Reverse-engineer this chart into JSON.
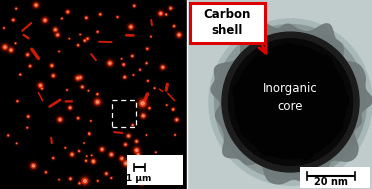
{
  "fig_width": 3.72,
  "fig_height": 1.89,
  "dpi": 100,
  "left_panel": {
    "bg_color": "#000000",
    "dot_color_bright": "#ff3300",
    "dot_color_dim": "#cc1100",
    "scale_bar_label": "1 μm",
    "n_dots": 110,
    "seed": 7
  },
  "right_panel": {
    "bg_color": "#c8d4d8",
    "core_color": "#030303",
    "shell_dark": "#0a0a0a",
    "shell_mid": "#404040",
    "shell_light": "#909090",
    "outer_light": "#b0bcbc",
    "scale_bar_label": "20 nm",
    "annotation_label": "Carbon\nshell",
    "core_label": "Inorganic\ncore",
    "arrow_color": "#dd0000"
  }
}
